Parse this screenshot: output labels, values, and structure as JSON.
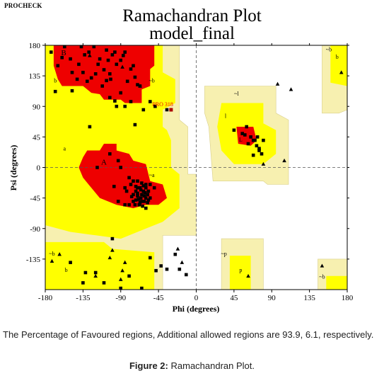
{
  "header": {
    "program": "PROCHECK",
    "title_line1": "Ramachandran Plot",
    "title_line2": "model_final"
  },
  "chart_data": {
    "type": "scatter",
    "xlabel": "Phi (degrees)",
    "ylabel": "Psi (degrees)",
    "xlim": [
      -180,
      180
    ],
    "ylim": [
      -180,
      180
    ],
    "xticks": [
      -180,
      -135,
      -90,
      -45,
      0,
      45,
      90,
      135,
      180
    ],
    "yticks": [
      180,
      135,
      90,
      45,
      0,
      -45,
      -90,
      -135
    ],
    "colors": {
      "core": "#ee0000",
      "allowed": "#ffff00",
      "generous": "#f7f0b0",
      "point": "#000000",
      "glycine": "#000000",
      "highlight": "#aa0000"
    },
    "region_labels": [
      {
        "text": "B",
        "phi": -158,
        "psi": 168
      },
      {
        "text": "b",
        "phi": -168,
        "psi": 127
      },
      {
        "text": "~b",
        "phi": -53,
        "psi": 127
      },
      {
        "text": "~l",
        "phi": 48,
        "psi": 108
      },
      {
        "text": "l",
        "phi": 35,
        "psi": 75
      },
      {
        "text": "L",
        "phi": 53,
        "psi": 40
      },
      {
        "text": "a",
        "phi": -157,
        "psi": 27
      },
      {
        "text": "A",
        "phi": -110,
        "psi": 7
      },
      {
        "text": "~a",
        "phi": -53,
        "psi": -12
      },
      {
        "text": "~b",
        "phi": -172,
        "psi": -128
      },
      {
        "text": "b",
        "phi": -155,
        "psi": -152
      },
      {
        "text": "~p",
        "phi": 33,
        "psi": -128
      },
      {
        "text": "p",
        "phi": 53,
        "psi": -152
      },
      {
        "text": "~b",
        "phi": 150,
        "psi": -162
      },
      {
        "text": "~b",
        "phi": 158,
        "psi": 173
      },
      {
        "text": "b",
        "phi": 168,
        "psi": 162
      }
    ],
    "highlight": {
      "text": "PRO 318",
      "phi": -30,
      "psi": 85
    },
    "points": [
      [
        -157,
        178
      ],
      [
        -150,
        160
      ],
      [
        -148,
        140
      ],
      [
        -140,
        152
      ],
      [
        -137,
        178
      ],
      [
        -133,
        166
      ],
      [
        -128,
        170
      ],
      [
        -122,
        178
      ],
      [
        -117,
        152
      ],
      [
        -115,
        160
      ],
      [
        -110,
        144
      ],
      [
        -107,
        173
      ],
      [
        -105,
        158
      ],
      [
        -103,
        138
      ],
      [
        -100,
        166
      ],
      [
        -97,
        170
      ],
      [
        -95,
        152
      ],
      [
        -90,
        158
      ],
      [
        -87,
        165
      ],
      [
        -85,
        170
      ],
      [
        -82,
        127
      ],
      [
        -78,
        145
      ],
      [
        -75,
        150
      ],
      [
        -73,
        133
      ],
      [
        -70,
        122
      ],
      [
        -67,
        120
      ],
      [
        -90,
        110
      ],
      [
        -103,
        103
      ],
      [
        -97,
        98
      ],
      [
        -95,
        90
      ],
      [
        -85,
        90
      ],
      [
        -78,
        97
      ],
      [
        -55,
        97
      ],
      [
        -49,
        90
      ],
      [
        -35,
        85
      ],
      [
        -63,
        85
      ],
      [
        -130,
        127
      ],
      [
        -125,
        132
      ],
      [
        -135,
        140
      ],
      [
        -160,
        162
      ],
      [
        -165,
        150
      ],
      [
        -112,
        120
      ],
      [
        -107,
        128
      ],
      [
        -102,
        130
      ],
      [
        -127,
        60
      ],
      [
        -73,
        63
      ],
      [
        -173,
        170
      ],
      [
        -168,
        112
      ],
      [
        -148,
        113
      ],
      [
        -142,
        130
      ],
      [
        -120,
        138
      ],
      [
        -118,
        0
      ],
      [
        -103,
        20
      ],
      [
        -93,
        10
      ],
      [
        -90,
        0
      ],
      [
        -80,
        -15
      ],
      [
        -75,
        -20
      ],
      [
        -70,
        -20
      ],
      [
        -65,
        -23
      ],
      [
        -60,
        -25
      ],
      [
        -55,
        -25
      ],
      [
        -50,
        -30
      ],
      [
        -93,
        -50
      ],
      [
        -98,
        -28
      ],
      [
        -85,
        -55
      ],
      [
        -80,
        -55
      ],
      [
        -83,
        -35
      ],
      [
        -85,
        -30
      ],
      [
        -60,
        -60
      ],
      [
        -58,
        -40
      ],
      [
        -77,
        -43
      ],
      [
        -72,
        -48
      ],
      [
        -67,
        -30
      ],
      [
        -63,
        -35
      ],
      [
        -62,
        -50
      ],
      [
        -66,
        -45
      ],
      [
        -70,
        -38
      ],
      [
        -68,
        -55
      ],
      [
        -75,
        -40
      ],
      [
        -65,
        -40
      ],
      [
        -60,
        -45
      ],
      [
        -70,
        -30
      ],
      [
        -63,
        -27
      ],
      [
        -57,
        -35
      ],
      [
        -72,
        -35
      ],
      [
        -58,
        -52
      ],
      [
        -69,
        -47
      ],
      [
        -66,
        -33
      ],
      [
        -61,
        -37
      ],
      [
        -55,
        -45
      ],
      [
        -64,
        -57
      ],
      [
        -73,
        -55
      ],
      [
        -78,
        -25
      ],
      [
        -75,
        -50
      ],
      [
        -67,
        -52
      ],
      [
        -70,
        -42
      ],
      [
        -60,
        -30
      ],
      [
        -62,
        -42
      ],
      [
        -57,
        -48
      ],
      [
        -65,
        -50
      ],
      [
        -72,
        -28
      ],
      [
        -150,
        -140
      ],
      [
        -132,
        -155
      ],
      [
        -120,
        -155
      ],
      [
        -110,
        -170
      ],
      [
        -90,
        -178
      ],
      [
        -65,
        -178
      ],
      [
        -80,
        -160
      ],
      [
        -55,
        -133
      ],
      [
        -48,
        -152
      ],
      [
        -42,
        -145
      ],
      [
        -35,
        -150
      ],
      [
        -25,
        -128
      ],
      [
        -20,
        -150
      ],
      [
        -12,
        -158
      ],
      [
        -100,
        -105
      ],
      [
        -135,
        -170
      ],
      [
        58,
        48
      ],
      [
        65,
        45
      ],
      [
        68,
        40
      ],
      [
        72,
        32
      ],
      [
        75,
        25
      ],
      [
        78,
        20
      ],
      [
        70,
        40
      ],
      [
        62,
        35
      ],
      [
        80,
        40
      ],
      [
        55,
        50
      ],
      [
        73,
        45
      ],
      [
        45,
        55
      ],
      [
        68,
        18
      ],
      [
        60,
        60
      ],
      [
        75,
        28
      ]
    ],
    "glycines": [
      [
        -127,
        165
      ],
      [
        -88,
        148
      ],
      [
        -67,
        120
      ],
      [
        -100,
        -122
      ],
      [
        -88,
        -152
      ],
      [
        -103,
        -133
      ],
      [
        -163,
        -128
      ],
      [
        -22,
        -120
      ],
      [
        -17,
        -140
      ],
      [
        97,
        123
      ],
      [
        113,
        115
      ],
      [
        105,
        10
      ],
      [
        173,
        140
      ],
      [
        150,
        -145
      ],
      [
        -172,
        -138
      ],
      [
        -85,
        -140
      ],
      [
        80,
        5
      ],
      [
        62,
        -160
      ],
      [
        -90,
        -165
      ],
      [
        -120,
        -160
      ]
    ]
  },
  "caption": {
    "text": "The Percentage of Favoured regions, Additional allowed regions are 93.9, 6.1, respectively.",
    "figure_label": "Figure 2:",
    "figure_title": "Ramachandran Plot."
  }
}
